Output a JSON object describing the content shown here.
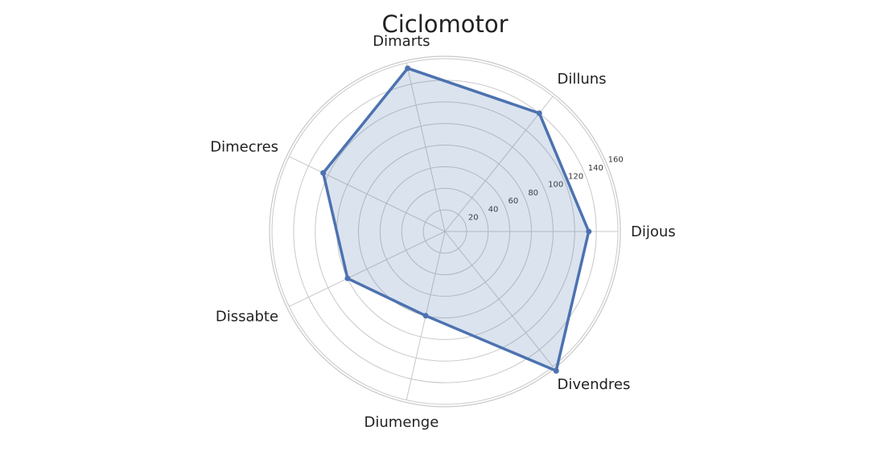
{
  "chart_data": {
    "type": "radar",
    "title": "Ciclomotor",
    "categories": [
      "Dijous",
      "Dilluns",
      "Dimarts",
      "Dimecres",
      "Dissabte",
      "Diumenge",
      "Divendres"
    ],
    "series": [
      {
        "values": [
          133,
          140,
          155,
          125,
          100,
          80,
          165
        ]
      }
    ],
    "rlim": [
      0,
      160
    ],
    "r_ticks": [
      20,
      40,
      60,
      80,
      100,
      120,
      140,
      160
    ],
    "grid": true,
    "colors": {
      "line": "#4c72b0",
      "fill": "#4c72b0",
      "grid": "#c8c8c8",
      "text": "#222222"
    }
  }
}
